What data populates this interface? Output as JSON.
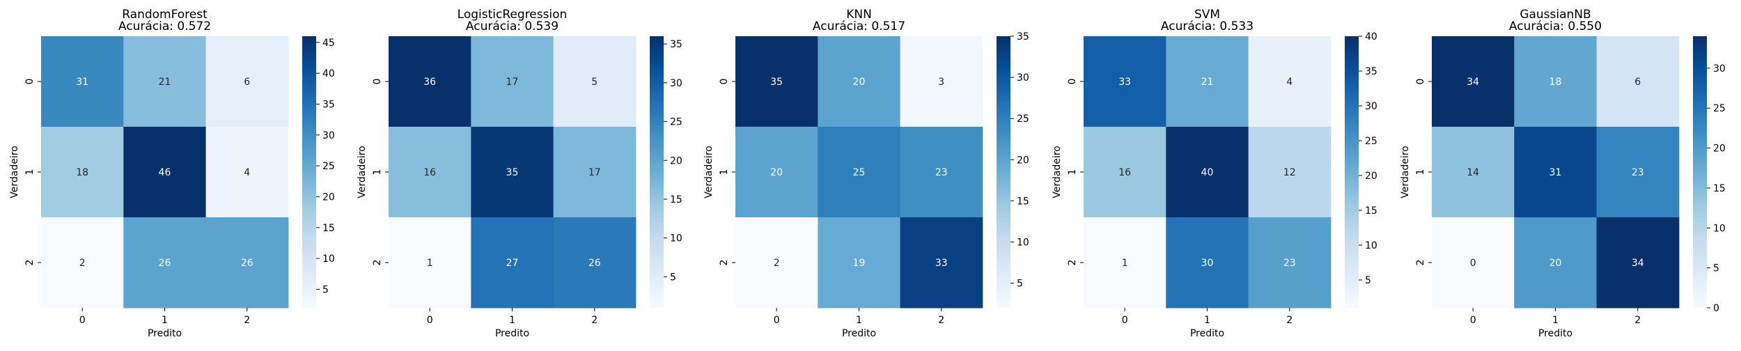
{
  "chart_data": [
    {
      "type": "heatmap",
      "title": "RandomForest",
      "subtitle": "Acurácia: 0.572",
      "xlabel": "Predito",
      "ylabel": "Verdadeiro",
      "x_categories": [
        "0",
        "1",
        "2"
      ],
      "y_categories": [
        "0",
        "1",
        "2"
      ],
      "values": [
        [
          31,
          21,
          6
        ],
        [
          18,
          46,
          4
        ],
        [
          2,
          26,
          26
        ]
      ],
      "colormap": "Blues",
      "colorbar_ticks": [
        "5",
        "10",
        "15",
        "20",
        "25",
        "30",
        "35",
        "40",
        "45"
      ],
      "colorbar_range": [
        2,
        46
      ]
    },
    {
      "type": "heatmap",
      "title": "LogisticRegression",
      "subtitle": "Acurácia: 0.539",
      "xlabel": "Predito",
      "ylabel": "Verdadeiro",
      "x_categories": [
        "0",
        "1",
        "2"
      ],
      "y_categories": [
        "0",
        "1",
        "2"
      ],
      "values": [
        [
          36,
          17,
          5
        ],
        [
          16,
          35,
          17
        ],
        [
          1,
          27,
          26
        ]
      ],
      "colormap": "Blues",
      "colorbar_ticks": [
        "5",
        "10",
        "15",
        "20",
        "25",
        "30",
        "35"
      ],
      "colorbar_range": [
        1,
        36
      ]
    },
    {
      "type": "heatmap",
      "title": "KNN",
      "subtitle": "Acurácia: 0.517",
      "xlabel": "Predito",
      "ylabel": "Verdadeiro",
      "x_categories": [
        "0",
        "1",
        "2"
      ],
      "y_categories": [
        "0",
        "1",
        "2"
      ],
      "values": [
        [
          35,
          20,
          3
        ],
        [
          20,
          25,
          23
        ],
        [
          2,
          19,
          33
        ]
      ],
      "colormap": "Blues",
      "colorbar_ticks": [
        "5",
        "10",
        "15",
        "20",
        "25",
        "30",
        "35"
      ],
      "colorbar_range": [
        2,
        35
      ]
    },
    {
      "type": "heatmap",
      "title": "SVM",
      "subtitle": "Acurácia: 0.533",
      "xlabel": "Predito",
      "ylabel": "Verdadeiro",
      "x_categories": [
        "0",
        "1",
        "2"
      ],
      "y_categories": [
        "0",
        "1",
        "2"
      ],
      "values": [
        [
          33,
          21,
          4
        ],
        [
          16,
          40,
          12
        ],
        [
          1,
          30,
          23
        ]
      ],
      "colormap": "Blues",
      "colorbar_ticks": [
        "5",
        "10",
        "15",
        "20",
        "25",
        "30",
        "35",
        "40"
      ],
      "colorbar_range": [
        1,
        40
      ]
    },
    {
      "type": "heatmap",
      "title": "GaussianNB",
      "subtitle": "Acurácia: 0.550",
      "xlabel": "Predito",
      "ylabel": "Verdadeiro",
      "x_categories": [
        "0",
        "1",
        "2"
      ],
      "y_categories": [
        "0",
        "1",
        "2"
      ],
      "values": [
        [
          34,
          18,
          6
        ],
        [
          14,
          31,
          23
        ],
        [
          0,
          20,
          34
        ]
      ],
      "colormap": "Blues",
      "colorbar_ticks": [
        "0",
        "5",
        "10",
        "15",
        "20",
        "25",
        "30"
      ],
      "colorbar_range": [
        0,
        34
      ]
    }
  ],
  "colors": {
    "text_dark": "#262626",
    "text_light": "#ffffff"
  }
}
